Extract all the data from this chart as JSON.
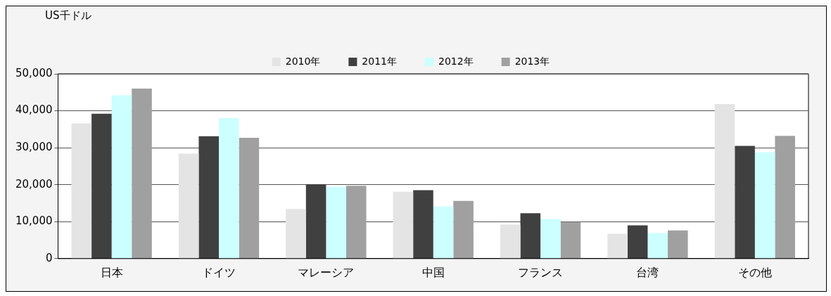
{
  "chart_data": {
    "type": "bar",
    "ylabel": "US千ドル",
    "categories": [
      "日本",
      "ドイツ",
      "マレーシア",
      "中国",
      "フランス",
      "台湾",
      "その他"
    ],
    "series": [
      {
        "name": "2010年",
        "color": "#e4e4e4",
        "values": [
          36600,
          28400,
          13400,
          18100,
          9200,
          6700,
          41800
        ]
      },
      {
        "name": "2011年",
        "color": "#404040",
        "values": [
          39200,
          33100,
          20100,
          18500,
          12300,
          9000,
          30500
        ]
      },
      {
        "name": "2012年",
        "color": "#ccffff",
        "values": [
          44200,
          38000,
          19400,
          14100,
          10700,
          6900,
          28800
        ]
      },
      {
        "name": "2013年",
        "color": "#a0a0a0",
        "values": [
          46000,
          32700,
          19700,
          15600,
          9900,
          7600,
          33200
        ]
      }
    ],
    "ylim": [
      0,
      50000
    ],
    "yticks": [
      0,
      {
        "value": 10000,
        "label": "10,000"
      },
      {
        "value": 20000,
        "label": "20,000"
      },
      {
        "value": 30000,
        "label": "30,000"
      },
      {
        "value": 40000,
        "label": "40,000"
      },
      {
        "value": 50000,
        "label": "50,000"
      }
    ],
    "grid": "y",
    "legend": "top"
  }
}
